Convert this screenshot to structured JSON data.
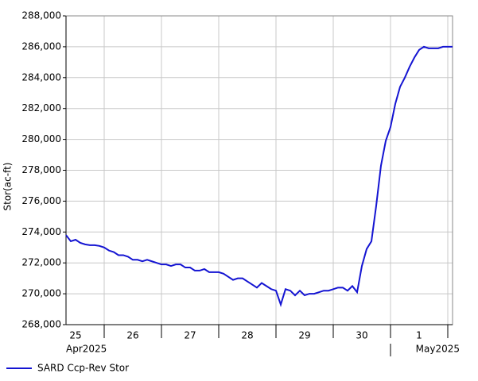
{
  "chart_data": {
    "type": "line",
    "y_label": "Stor(ac-ft)",
    "categories": [
      null,
      null,
      "25",
      null,
      null,
      null,
      null,
      null,
      null,
      null,
      null,
      null,
      null,
      null,
      "26",
      null,
      null,
      null,
      null,
      null,
      null,
      null,
      null,
      null,
      null,
      null,
      "27",
      null,
      null,
      null,
      null,
      null,
      null,
      null,
      null,
      null,
      null,
      null,
      "28",
      null,
      null,
      null,
      null,
      null,
      null,
      null,
      null,
      null,
      null,
      null,
      "29",
      null,
      null,
      null,
      null,
      null,
      null,
      null,
      null,
      null,
      null,
      null,
      "30",
      null,
      null,
      null,
      null,
      null,
      null,
      null,
      null,
      null,
      null,
      null,
      "1",
      null,
      null,
      null,
      null,
      null,
      null,
      null
    ],
    "month_labels": [
      "Apr2025",
      "May2025"
    ],
    "series": [
      {
        "name": "SARD Ccp-Rev Stor",
        "color": "#1414d2",
        "values": [
          273800,
          273400,
          273500,
          273300,
          273200,
          273150,
          273150,
          273100,
          273000,
          272800,
          272700,
          272500,
          272500,
          272400,
          272200,
          272200,
          272100,
          272200,
          272100,
          272000,
          271900,
          271900,
          271800,
          271900,
          271900,
          271700,
          271700,
          271500,
          271500,
          271600,
          271400,
          271400,
          271400,
          271300,
          271100,
          270900,
          271000,
          271000,
          270800,
          270600,
          270400,
          270700,
          270500,
          270300,
          270200,
          269300,
          270300,
          270200,
          269900,
          270200,
          269900,
          270000,
          270000,
          270100,
          270200,
          270200,
          270300,
          270400,
          270400,
          270200,
          270500,
          270100,
          271800,
          272900,
          273400,
          275700,
          278300,
          279900,
          280800,
          282300,
          283400,
          284000,
          284700,
          285300,
          285800,
          286000,
          285900,
          285900,
          285900,
          286000,
          286000,
          286000
        ]
      }
    ],
    "ylim": [
      268000,
      288000
    ],
    "yticks": [
      {
        "value": 268000,
        "label": "268,000"
      },
      {
        "value": 270000,
        "label": "270,000"
      },
      {
        "value": 272000,
        "label": "272,000"
      },
      {
        "value": 274000,
        "label": "274,000"
      },
      {
        "value": 276000,
        "label": "276,000"
      },
      {
        "value": 278000,
        "label": "278,000"
      },
      {
        "value": 280000,
        "label": "280,000"
      },
      {
        "value": 282000,
        "label": "282,000"
      },
      {
        "value": 284000,
        "label": "284,000"
      },
      {
        "value": 286000,
        "label": "286,000"
      },
      {
        "value": 288000,
        "label": "288,000"
      }
    ],
    "grid": true
  }
}
